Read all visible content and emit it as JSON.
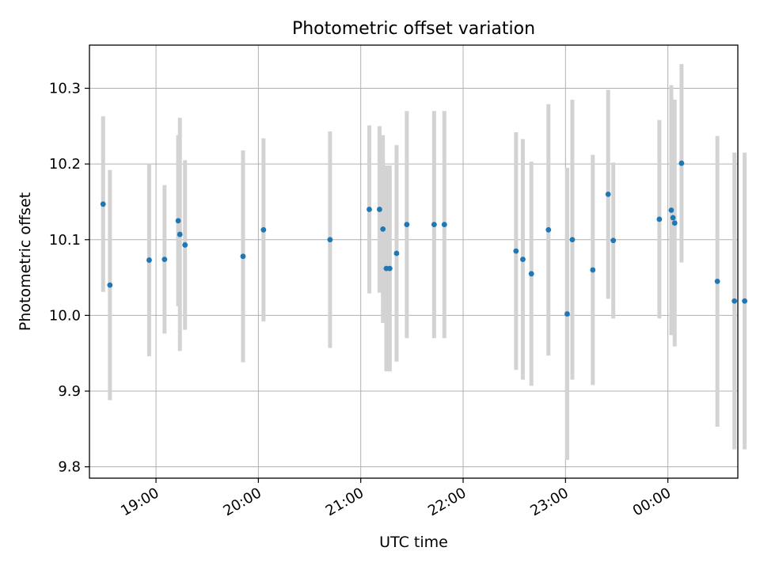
{
  "chart_data": {
    "type": "scatter",
    "title": "Photometric offset variation",
    "xlabel": "UTC time",
    "ylabel": "Photometric offset",
    "x_axis_kind": "time",
    "x_ticks": [
      "19:00",
      "20:00",
      "21:00",
      "22:00",
      "23:00",
      "00:00"
    ],
    "y_ticks": [
      "9.8",
      "9.9",
      "10.0",
      "10.1",
      "10.2",
      "10.3"
    ],
    "xlim": [
      "18:21",
      "00:41"
    ],
    "ylim": [
      9.785,
      10.357
    ],
    "grid": true,
    "marker_color": "#1f77b4",
    "errorbar_color": "#d3d3d3",
    "points": [
      {
        "x": "18:29",
        "y": 10.147,
        "yerr": 0.116
      },
      {
        "x": "18:33",
        "y": 10.04,
        "yerr": 0.152
      },
      {
        "x": "18:56",
        "y": 10.073,
        "yerr": 0.127
      },
      {
        "x": "19:05",
        "y": 10.074,
        "yerr": 0.098
      },
      {
        "x": "19:13",
        "y": 10.125,
        "yerr": 0.113
      },
      {
        "x": "19:14",
        "y": 10.107,
        "yerr": 0.154
      },
      {
        "x": "19:17",
        "y": 10.093,
        "yerr": 0.112
      },
      {
        "x": "19:51",
        "y": 10.078,
        "yerr": 0.14
      },
      {
        "x": "20:03",
        "y": 10.113,
        "yerr": 0.121
      },
      {
        "x": "20:42",
        "y": 10.1,
        "yerr": 0.143
      },
      {
        "x": "21:05",
        "y": 10.14,
        "yerr": 0.111
      },
      {
        "x": "21:11",
        "y": 10.14,
        "yerr": 0.11
      },
      {
        "x": "21:13",
        "y": 10.114,
        "yerr": 0.124
      },
      {
        "x": "21:15",
        "y": 10.062,
        "yerr": 0.136
      },
      {
        "x": "21:17",
        "y": 10.062,
        "yerr": 0.136
      },
      {
        "x": "21:21",
        "y": 10.082,
        "yerr": 0.143
      },
      {
        "x": "21:27",
        "y": 10.12,
        "yerr": 0.15
      },
      {
        "x": "21:43",
        "y": 10.12,
        "yerr": 0.15
      },
      {
        "x": "21:49",
        "y": 10.12,
        "yerr": 0.15
      },
      {
        "x": "22:31",
        "y": 10.085,
        "yerr": 0.157
      },
      {
        "x": "22:35",
        "y": 10.074,
        "yerr": 0.159
      },
      {
        "x": "22:40",
        "y": 10.055,
        "yerr": 0.148
      },
      {
        "x": "22:50",
        "y": 10.113,
        "yerr": 0.166
      },
      {
        "x": "23:01",
        "y": 10.002,
        "yerr": 0.193
      },
      {
        "x": "23:04",
        "y": 10.1,
        "yerr": 0.185
      },
      {
        "x": "23:16",
        "y": 10.06,
        "yerr": 0.152
      },
      {
        "x": "23:25",
        "y": 10.16,
        "yerr": 0.138
      },
      {
        "x": "23:28",
        "y": 10.099,
        "yerr": 0.103
      },
      {
        "x": "23:55",
        "y": 10.127,
        "yerr": 0.131
      },
      {
        "x": "24:02",
        "y": 10.139,
        "yerr": 0.165
      },
      {
        "x": "24:03",
        "y": 10.129,
        "yerr": 0.155
      },
      {
        "x": "24:04",
        "y": 10.122,
        "yerr": 0.163
      },
      {
        "x": "24:08",
        "y": 10.201,
        "yerr": 0.131
      },
      {
        "x": "24:29",
        "y": 10.045,
        "yerr": 0.192
      },
      {
        "x": "24:39",
        "y": 10.019,
        "yerr": 0.196
      },
      {
        "x": "24:45",
        "y": 10.019,
        "yerr": 0.196
      }
    ]
  }
}
